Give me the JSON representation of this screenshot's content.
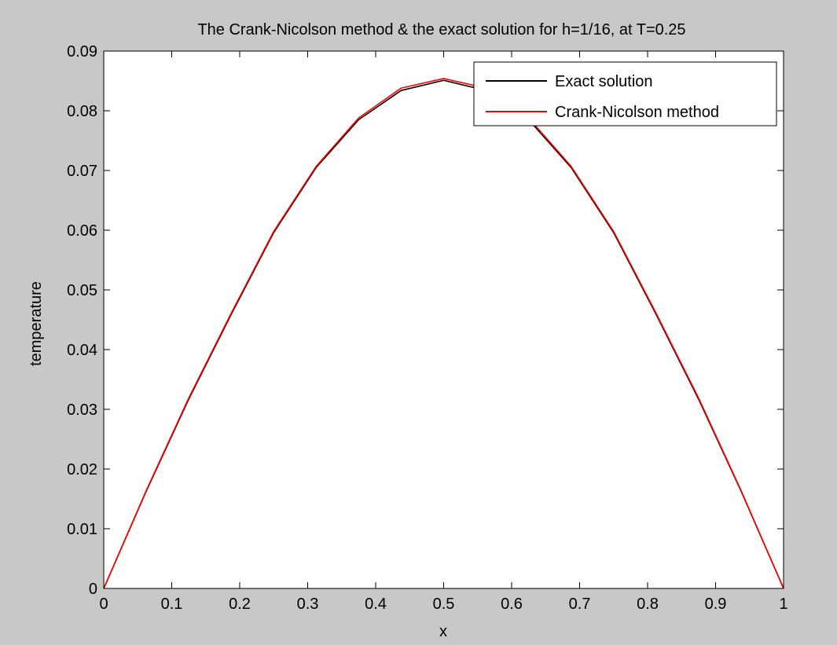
{
  "chart_data": {
    "type": "line",
    "title": "The Crank-Nicolson method & the exact solution for h=1/16, at T=0.25",
    "xlabel": "x",
    "ylabel": "temperature",
    "xlim": [
      0,
      1
    ],
    "ylim": [
      0,
      0.09
    ],
    "x_ticks": [
      "0",
      "0.1",
      "0.2",
      "0.3",
      "0.4",
      "0.5",
      "0.6",
      "0.7",
      "0.8",
      "0.9",
      "1"
    ],
    "x_tick_values": [
      0,
      0.1,
      0.2,
      0.3,
      0.4,
      0.5,
      0.6,
      0.7,
      0.8,
      0.9,
      1
    ],
    "y_ticks": [
      "0",
      "0.01",
      "0.02",
      "0.03",
      "0.04",
      "0.05",
      "0.06",
      "0.07",
      "0.08",
      "0.09"
    ],
    "y_tick_values": [
      0,
      0.01,
      0.02,
      0.03,
      0.04,
      0.05,
      0.06,
      0.07,
      0.08,
      0.09
    ],
    "grid": false,
    "legend_position": "top-right",
    "x": [
      0,
      0.0625,
      0.125,
      0.1875,
      0.25,
      0.3125,
      0.375,
      0.4375,
      0.5,
      0.5625,
      0.625,
      0.6875,
      0.75,
      0.8125,
      0.875,
      0.9375,
      1
    ],
    "series": [
      {
        "name": "Exact solution",
        "color": "#000000",
        "values": [
          0,
          0.0163,
          0.0317,
          0.0459,
          0.0596,
          0.0705,
          0.0785,
          0.0834,
          0.0851,
          0.0834,
          0.0785,
          0.0705,
          0.0596,
          0.0459,
          0.0317,
          0.0163,
          0
        ]
      },
      {
        "name": "Crank-Nicolson method",
        "color": "#ff0000",
        "values": [
          0,
          0.0164,
          0.0319,
          0.0461,
          0.0598,
          0.0707,
          0.0788,
          0.0838,
          0.0854,
          0.0838,
          0.0788,
          0.0707,
          0.0598,
          0.0461,
          0.0319,
          0.0164,
          0
        ]
      }
    ]
  }
}
